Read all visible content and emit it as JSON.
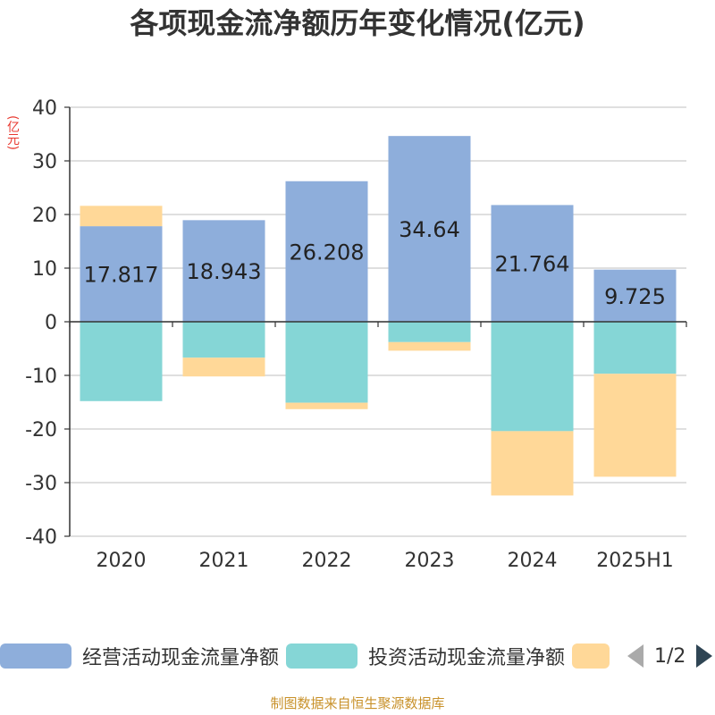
{
  "title": "各项现金流净额历年变化情况(亿元)",
  "unit_label": "(亿元)",
  "source": "制图数据来自恒生聚源数据库",
  "legend": {
    "items": [
      {
        "label": "经营活动现金流量净额",
        "color": "#8eaedb"
      },
      {
        "label": "投资活动现金流量净额",
        "color": "#85d6d6"
      },
      {
        "label": "",
        "color": "#ffd898"
      }
    ],
    "page": "1/2"
  },
  "chart_data": {
    "type": "bar",
    "stacked": true,
    "categories": [
      "2020",
      "2021",
      "2022",
      "2023",
      "2024",
      "2025H1"
    ],
    "series": [
      {
        "name": "经营活动现金流量净额",
        "color": "#8eaedb",
        "values": [
          17.817,
          18.943,
          26.208,
          34.64,
          21.764,
          9.725
        ],
        "labels": [
          "17.817",
          "18.943",
          "26.208",
          "34.64",
          "21.764",
          "9.725"
        ]
      },
      {
        "name": "投资活动现金流量净额",
        "color": "#85d6d6",
        "values": [
          -14.8,
          -6.7,
          -15.1,
          -3.8,
          -20.4,
          -9.7
        ]
      },
      {
        "name": "",
        "color": "#ffd898",
        "values": [
          3.8,
          -3.5,
          -1.2,
          -1.6,
          -12.0,
          -19.2
        ]
      }
    ],
    "yticks": [
      40,
      30,
      20,
      10,
      0,
      -10,
      -20,
      -30,
      -40
    ],
    "ylim": [
      -40,
      40
    ],
    "grid": true
  }
}
